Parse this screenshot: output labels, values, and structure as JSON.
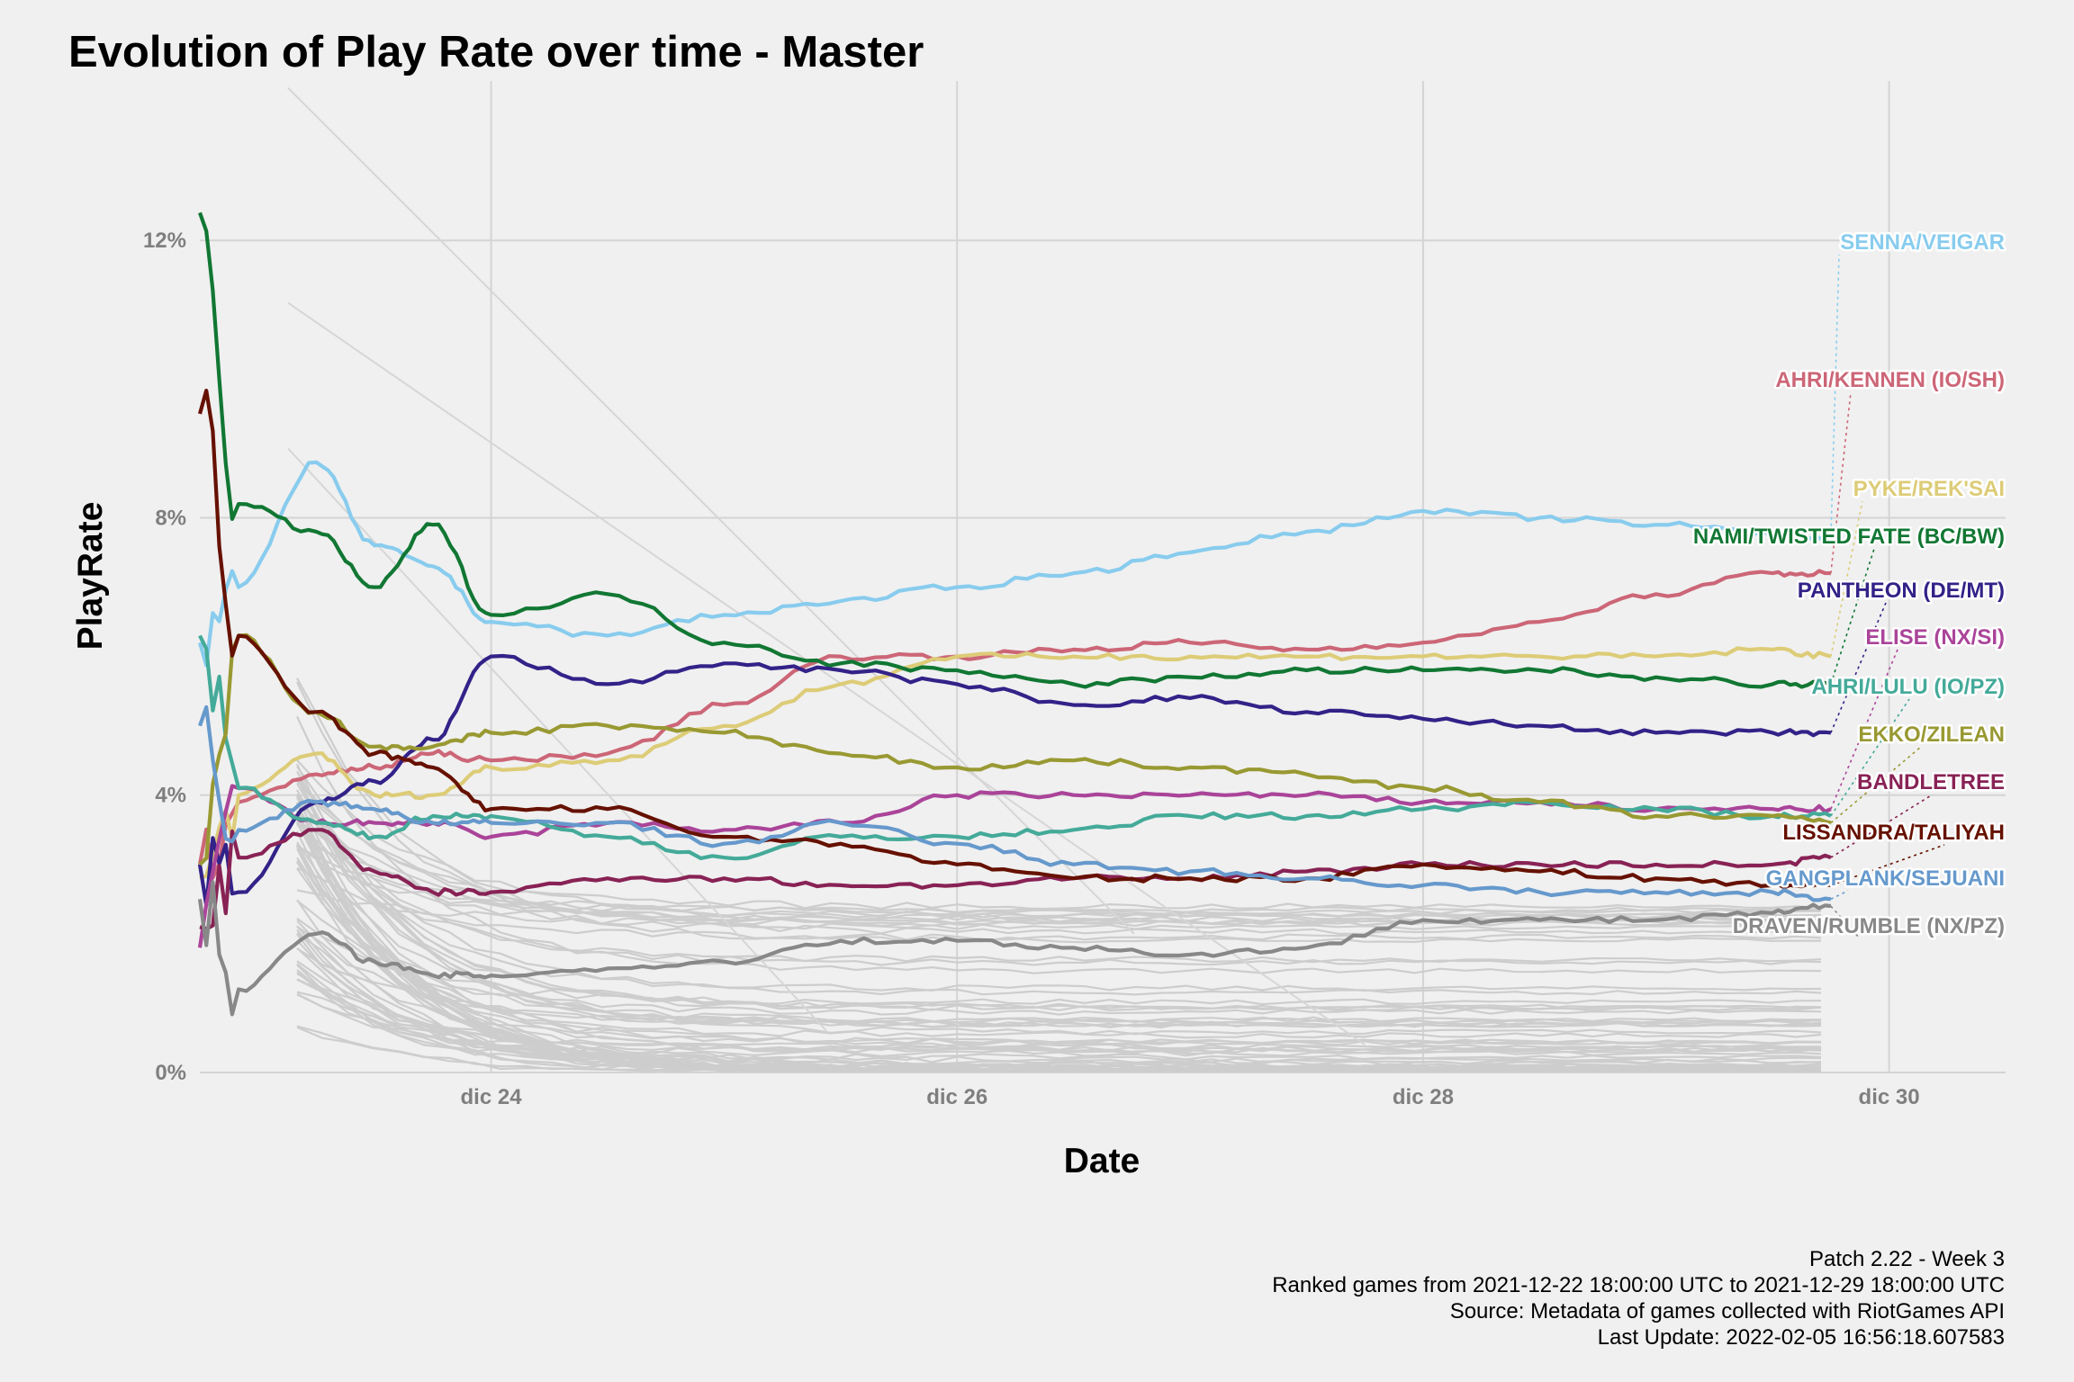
{
  "chart_data": {
    "type": "line",
    "title": "Evolution of Play Rate over time - Master",
    "xlabel": "Date",
    "ylabel": "PlayRate",
    "x_ticks": [
      "dic 24",
      "dic 26",
      "dic 28",
      "dic 30"
    ],
    "y_ticks": [
      "0%",
      "4%",
      "8%",
      "12%"
    ],
    "ylim": [
      0,
      14.3
    ],
    "xlim": [
      "2021-12-22 18:00",
      "2021-12-30 12:00"
    ],
    "grid": true,
    "legend": "none",
    "x": [
      "2021-12-22 18:00",
      "2021-12-22 22:00",
      "2021-12-23 06:00",
      "2021-12-23 12:00",
      "2021-12-23 18:00",
      "2021-12-24 00:00",
      "2021-12-24 12:00",
      "2021-12-25 00:00",
      "2021-12-25 12:00",
      "2021-12-26 00:00",
      "2021-12-26 12:00",
      "2021-12-27 00:00",
      "2021-12-27 12:00",
      "2021-12-28 00:00",
      "2021-12-28 12:00",
      "2021-12-29 00:00",
      "2021-12-29 12:00",
      "2021-12-29 18:00"
    ],
    "series": [
      {
        "name": "SENNA/VEIGAR",
        "color": "#88ccee",
        "values": [
          6.2,
          7.0,
          8.8,
          7.6,
          7.3,
          6.5,
          6.3,
          6.6,
          6.8,
          7.0,
          7.2,
          7.5,
          7.8,
          8.1,
          8.0,
          7.9,
          7.8,
          7.7
        ]
      },
      {
        "name": "AHRI/KENNEN (IO/SH)",
        "color": "#cc6677",
        "values": [
          3.0,
          3.9,
          4.3,
          4.4,
          4.6,
          4.5,
          4.6,
          5.3,
          6.0,
          6.0,
          6.1,
          6.2,
          6.1,
          6.2,
          6.5,
          6.9,
          7.2,
          7.2
        ]
      },
      {
        "name": "PYKE/REK'SAI",
        "color": "#ddcc77",
        "values": [
          2.8,
          4.0,
          4.6,
          4.0,
          4.0,
          4.4,
          4.5,
          5.0,
          5.6,
          6.0,
          6.0,
          6.0,
          6.0,
          6.0,
          6.0,
          6.0,
          6.1,
          6.0
        ]
      },
      {
        "name": "NAMI/TWISTED FATE (BC/BW)",
        "color": "#117733",
        "values": [
          12.4,
          8.2,
          7.8,
          7.0,
          7.9,
          6.6,
          6.9,
          6.2,
          5.9,
          5.8,
          5.6,
          5.7,
          5.8,
          5.8,
          5.8,
          5.7,
          5.6,
          5.6
        ]
      },
      {
        "name": "PANTHEON (DE/MT)",
        "color": "#332288",
        "values": [
          3.0,
          2.6,
          3.9,
          4.2,
          4.8,
          6.0,
          5.6,
          5.9,
          5.8,
          5.6,
          5.3,
          5.4,
          5.2,
          5.1,
          5.0,
          4.9,
          4.9,
          4.9
        ]
      },
      {
        "name": "ELISE (NX/SI)",
        "color": "#aa4499",
        "values": [
          1.8,
          4.1,
          3.6,
          3.6,
          3.6,
          3.4,
          3.6,
          3.5,
          3.6,
          4.0,
          4.0,
          4.0,
          4.0,
          3.9,
          3.9,
          3.8,
          3.8,
          3.8
        ]
      },
      {
        "name": "AHRI/LULU (IO/PZ)",
        "color": "#44aa99",
        "values": [
          6.3,
          4.1,
          3.6,
          3.4,
          3.7,
          3.7,
          3.4,
          3.1,
          3.4,
          3.4,
          3.5,
          3.7,
          3.7,
          3.8,
          3.9,
          3.8,
          3.7,
          3.7
        ]
      },
      {
        "name": "EKKO/ZILEAN",
        "color": "#999933",
        "values": [
          3.0,
          6.3,
          5.2,
          4.7,
          4.7,
          4.9,
          5.0,
          4.9,
          4.6,
          4.4,
          4.5,
          4.4,
          4.3,
          4.1,
          3.9,
          3.7,
          3.7,
          3.6
        ]
      },
      {
        "name": "BANDLETREE",
        "color": "#882255",
        "values": [
          2.1,
          3.1,
          3.5,
          2.9,
          2.6,
          2.6,
          2.8,
          2.8,
          2.7,
          2.7,
          2.8,
          2.8,
          2.9,
          3.0,
          3.0,
          3.0,
          3.0,
          3.1
        ]
      },
      {
        "name": "LISSANDRA/TALIYAH",
        "color": "#661100",
        "values": [
          9.5,
          6.3,
          5.2,
          4.6,
          4.4,
          3.8,
          3.8,
          3.4,
          3.3,
          3.0,
          2.8,
          2.8,
          2.8,
          3.0,
          2.9,
          2.8,
          2.7,
          2.7
        ]
      },
      {
        "name": "GANGPLANK/SEJUANI",
        "color": "#6699cc",
        "values": [
          5.0,
          3.5,
          3.9,
          3.8,
          3.6,
          3.6,
          3.6,
          3.3,
          3.6,
          3.3,
          3.0,
          2.9,
          2.8,
          2.7,
          2.6,
          2.6,
          2.6,
          2.5
        ]
      },
      {
        "name": "DRAVEN/RUMBLE (NX/PZ)",
        "color": "#888888",
        "values": [
          2.5,
          1.2,
          2.0,
          1.6,
          1.4,
          1.4,
          1.5,
          1.6,
          1.9,
          1.9,
          1.8,
          1.7,
          1.8,
          2.2,
          2.2,
          2.2,
          2.3,
          2.4
        ]
      }
    ]
  },
  "caption": {
    "line1": "Patch 2.22 - Week 3",
    "line2": "Ranked games from 2021-12-22 18:00:00 UTC to 2021-12-29 18:00:00 UTC",
    "line3": "Source: Metadata of games collected with RiotGames API",
    "line4": "Last Update: 2022-02-05 16:56:18.607583"
  }
}
